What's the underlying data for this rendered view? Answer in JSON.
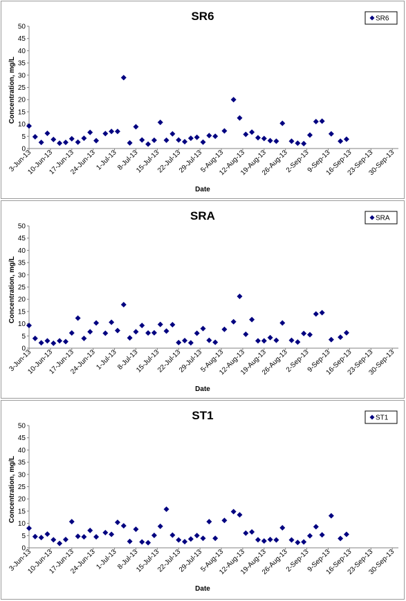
{
  "colors": {
    "marker": "#000080",
    "axis": "#808080",
    "border": "#9a9a9a"
  },
  "chart_data": [
    {
      "type": "scatter",
      "title": "SR6",
      "xlabel": "Date",
      "ylabel": "Concentration, mg/L",
      "ylim": [
        0,
        50
      ],
      "yticks": [
        0,
        5,
        10,
        15,
        20,
        25,
        30,
        35,
        40,
        45,
        50
      ],
      "xlim": [
        "2013-06-03",
        "2013-10-02"
      ],
      "xticks": [
        "2013-06-03",
        "2013-06-10",
        "2013-06-17",
        "2013-06-24",
        "2013-07-01",
        "2013-07-08",
        "2013-07-15",
        "2013-07-22",
        "2013-07-29",
        "2013-08-05",
        "2013-08-12",
        "2013-08-19",
        "2013-08-26",
        "2013-09-02",
        "2013-09-09",
        "2013-09-16",
        "2013-09-23",
        "2013-09-30"
      ],
      "xtick_labels": [
        "3-Jun-13",
        "10-Jun-13",
        "17-Jun-13",
        "24-Jun-13",
        "1-Jul-13",
        "8-Jul-13",
        "15-Jul-13",
        "22-Jul-13",
        "29-Jul-13",
        "5-Aug-13",
        "12-Aug-13",
        "19-Aug-13",
        "26-Aug-13",
        "2-Sep-13",
        "9-Sep-13",
        "16-Sep-13",
        "23-Sep-13",
        "30-Sep-13"
      ],
      "legend": "top-right",
      "series": [
        {
          "name": "SR6",
          "points": [
            [
              "2013-06-03",
              9.2
            ],
            [
              "2013-06-05",
              4.8
            ],
            [
              "2013-06-07",
              2.5
            ],
            [
              "2013-06-09",
              6.2
            ],
            [
              "2013-06-11",
              3.7
            ],
            [
              "2013-06-13",
              2.2
            ],
            [
              "2013-06-15",
              2.5
            ],
            [
              "2013-06-17",
              4.0
            ],
            [
              "2013-06-19",
              2.6
            ],
            [
              "2013-06-21",
              4.2
            ],
            [
              "2013-06-23",
              6.6
            ],
            [
              "2013-06-25",
              3.2
            ],
            [
              "2013-06-28",
              6.1
            ],
            [
              "2013-06-30",
              7.0
            ],
            [
              "2013-07-02",
              7.0
            ],
            [
              "2013-07-04",
              29.0
            ],
            [
              "2013-07-06",
              2.3
            ],
            [
              "2013-07-08",
              8.9
            ],
            [
              "2013-07-10",
              3.5
            ],
            [
              "2013-07-12",
              1.8
            ],
            [
              "2013-07-14",
              3.4
            ],
            [
              "2013-07-16",
              10.7
            ],
            [
              "2013-07-18",
              3.4
            ],
            [
              "2013-07-20",
              6.0
            ],
            [
              "2013-07-22",
              3.5
            ],
            [
              "2013-07-24",
              2.8
            ],
            [
              "2013-07-26",
              4.2
            ],
            [
              "2013-07-28",
              4.6
            ],
            [
              "2013-07-30",
              2.6
            ],
            [
              "2013-08-01",
              5.3
            ],
            [
              "2013-08-03",
              5.0
            ],
            [
              "2013-08-06",
              7.2
            ],
            [
              "2013-08-09",
              20.0
            ],
            [
              "2013-08-11",
              12.5
            ],
            [
              "2013-08-13",
              5.8
            ],
            [
              "2013-08-15",
              6.7
            ],
            [
              "2013-08-17",
              4.4
            ],
            [
              "2013-08-19",
              4.1
            ],
            [
              "2013-08-21",
              3.2
            ],
            [
              "2013-08-23",
              3.0
            ],
            [
              "2013-08-25",
              10.3
            ],
            [
              "2013-08-28",
              3.0
            ],
            [
              "2013-08-30",
              2.2
            ],
            [
              "2013-09-01",
              2.0
            ],
            [
              "2013-09-03",
              5.5
            ],
            [
              "2013-09-05",
              11.0
            ],
            [
              "2013-09-07",
              11.2
            ],
            [
              "2013-09-10",
              6.0
            ],
            [
              "2013-09-13",
              3.0
            ],
            [
              "2013-09-15",
              3.8
            ]
          ]
        }
      ]
    },
    {
      "type": "scatter",
      "title": "SRA",
      "xlabel": "Date",
      "ylabel": "Concentration, mg/L",
      "ylim": [
        0,
        50
      ],
      "yticks": [
        0,
        5,
        10,
        15,
        20,
        25,
        30,
        35,
        40,
        45,
        50
      ],
      "xlim": [
        "2013-06-03",
        "2013-10-02"
      ],
      "xticks": [
        "2013-06-03",
        "2013-06-10",
        "2013-06-17",
        "2013-06-24",
        "2013-07-01",
        "2013-07-08",
        "2013-07-15",
        "2013-07-22",
        "2013-07-29",
        "2013-08-05",
        "2013-08-12",
        "2013-08-19",
        "2013-08-26",
        "2013-09-02",
        "2013-09-09",
        "2013-09-16",
        "2013-09-23",
        "2013-09-30"
      ],
      "xtick_labels": [
        "3-Jun-13",
        "10-Jun-13",
        "17-Jun-13",
        "24-Jun-13",
        "1-Jul-13",
        "8-Jul-13",
        "15-Jul-13",
        "22-Jul-13",
        "29-Jul-13",
        "5-Aug-13",
        "12-Aug-13",
        "19-Aug-13",
        "26-Aug-13",
        "2-Sep-13",
        "9-Sep-13",
        "16-Sep-13",
        "23-Sep-13",
        "30-Sep-13"
      ],
      "legend": "top-right",
      "series": [
        {
          "name": "SRA",
          "points": [
            [
              "2013-06-03",
              9.3
            ],
            [
              "2013-06-05",
              4.0
            ],
            [
              "2013-06-07",
              2.2
            ],
            [
              "2013-06-09",
              3.0
            ],
            [
              "2013-06-11",
              2.0
            ],
            [
              "2013-06-13",
              3.0
            ],
            [
              "2013-06-15",
              2.7
            ],
            [
              "2013-06-17",
              6.2
            ],
            [
              "2013-06-19",
              12.3
            ],
            [
              "2013-06-21",
              4.0
            ],
            [
              "2013-06-23",
              6.7
            ],
            [
              "2013-06-25",
              10.3
            ],
            [
              "2013-06-28",
              6.1
            ],
            [
              "2013-06-30",
              10.6
            ],
            [
              "2013-07-02",
              7.2
            ],
            [
              "2013-07-04",
              17.8
            ],
            [
              "2013-07-06",
              4.2
            ],
            [
              "2013-07-08",
              6.7
            ],
            [
              "2013-07-10",
              9.3
            ],
            [
              "2013-07-12",
              6.2
            ],
            [
              "2013-07-14",
              6.3
            ],
            [
              "2013-07-16",
              9.7
            ],
            [
              "2013-07-18",
              7.0
            ],
            [
              "2013-07-20",
              9.6
            ],
            [
              "2013-07-22",
              2.3
            ],
            [
              "2013-07-24",
              3.1
            ],
            [
              "2013-07-26",
              2.2
            ],
            [
              "2013-07-28",
              6.1
            ],
            [
              "2013-07-30",
              8.0
            ],
            [
              "2013-08-01",
              3.2
            ],
            [
              "2013-08-03",
              2.4
            ],
            [
              "2013-08-06",
              7.7
            ],
            [
              "2013-08-09",
              10.8
            ],
            [
              "2013-08-11",
              21.2
            ],
            [
              "2013-08-13",
              5.7
            ],
            [
              "2013-08-15",
              11.7
            ],
            [
              "2013-08-17",
              3.0
            ],
            [
              "2013-08-19",
              3.0
            ],
            [
              "2013-08-21",
              4.3
            ],
            [
              "2013-08-23",
              3.2
            ],
            [
              "2013-08-25",
              10.3
            ],
            [
              "2013-08-28",
              3.2
            ],
            [
              "2013-08-30",
              2.5
            ],
            [
              "2013-09-01",
              6.0
            ],
            [
              "2013-09-03",
              5.5
            ],
            [
              "2013-09-05",
              14.0
            ],
            [
              "2013-09-07",
              14.5
            ],
            [
              "2013-09-10",
              3.5
            ],
            [
              "2013-09-13",
              4.5
            ],
            [
              "2013-09-15",
              6.3
            ]
          ]
        }
      ]
    },
    {
      "type": "scatter",
      "title": "ST1",
      "xlabel": "Date",
      "ylabel": "Concentration, mg/L",
      "ylim": [
        0,
        50
      ],
      "yticks": [
        0,
        5,
        10,
        15,
        20,
        25,
        30,
        35,
        40,
        45,
        50
      ],
      "xlim": [
        "2013-06-03",
        "2013-10-02"
      ],
      "xticks": [
        "2013-06-03",
        "2013-06-10",
        "2013-06-17",
        "2013-06-24",
        "2013-07-01",
        "2013-07-08",
        "2013-07-15",
        "2013-07-22",
        "2013-07-29",
        "2013-08-05",
        "2013-08-12",
        "2013-08-19",
        "2013-08-26",
        "2013-09-02",
        "2013-09-09",
        "2013-09-16",
        "2013-09-23",
        "2013-09-30"
      ],
      "xtick_labels": [
        "3-Jun-13",
        "10-Jun-13",
        "17-Jun-13",
        "24-Jun-13",
        "1-Jul-13",
        "8-Jul-13",
        "15-Jul-13",
        "22-Jul-13",
        "29-Jul-13",
        "5-Aug-13",
        "12-Aug-13",
        "19-Aug-13",
        "26-Aug-13",
        "2-Sep-13",
        "9-Sep-13",
        "16-Sep-13",
        "23-Sep-13",
        "30-Sep-13"
      ],
      "legend": "top-right",
      "series": [
        {
          "name": "ST1",
          "points": [
            [
              "2013-06-03",
              8.0
            ],
            [
              "2013-06-05",
              4.6
            ],
            [
              "2013-06-07",
              4.2
            ],
            [
              "2013-06-09",
              5.6
            ],
            [
              "2013-06-11",
              3.3
            ],
            [
              "2013-06-13",
              1.8
            ],
            [
              "2013-06-15",
              3.4
            ],
            [
              "2013-06-17",
              10.7
            ],
            [
              "2013-06-19",
              4.7
            ],
            [
              "2013-06-21",
              4.5
            ],
            [
              "2013-06-23",
              7.1
            ],
            [
              "2013-06-25",
              4.5
            ],
            [
              "2013-06-28",
              6.2
            ],
            [
              "2013-06-30",
              5.5
            ],
            [
              "2013-07-02",
              10.4
            ],
            [
              "2013-07-04",
              9.0
            ],
            [
              "2013-07-06",
              2.6
            ],
            [
              "2013-07-08",
              7.6
            ],
            [
              "2013-07-10",
              2.4
            ],
            [
              "2013-07-12",
              2.1
            ],
            [
              "2013-07-14",
              5.1
            ],
            [
              "2013-07-16",
              8.8
            ],
            [
              "2013-07-18",
              15.8
            ],
            [
              "2013-07-20",
              5.2
            ],
            [
              "2013-07-22",
              3.2
            ],
            [
              "2013-07-24",
              2.5
            ],
            [
              "2013-07-26",
              3.6
            ],
            [
              "2013-07-28",
              5.0
            ],
            [
              "2013-07-30",
              3.9
            ],
            [
              "2013-08-01",
              10.7
            ],
            [
              "2013-08-03",
              3.9
            ],
            [
              "2013-08-06",
              11.2
            ],
            [
              "2013-08-09",
              14.8
            ],
            [
              "2013-08-11",
              13.5
            ],
            [
              "2013-08-13",
              6.0
            ],
            [
              "2013-08-15",
              6.5
            ],
            [
              "2013-08-17",
              3.3
            ],
            [
              "2013-08-19",
              2.8
            ],
            [
              "2013-08-21",
              3.4
            ],
            [
              "2013-08-23",
              3.2
            ],
            [
              "2013-08-25",
              8.2
            ],
            [
              "2013-08-28",
              3.2
            ],
            [
              "2013-08-30",
              2.2
            ],
            [
              "2013-09-01",
              2.4
            ],
            [
              "2013-09-03",
              4.9
            ],
            [
              "2013-09-05",
              8.6
            ],
            [
              "2013-09-07",
              5.3
            ],
            [
              "2013-09-10",
              13.1
            ],
            [
              "2013-09-13",
              3.8
            ],
            [
              "2013-09-15",
              5.5
            ]
          ]
        }
      ]
    }
  ]
}
